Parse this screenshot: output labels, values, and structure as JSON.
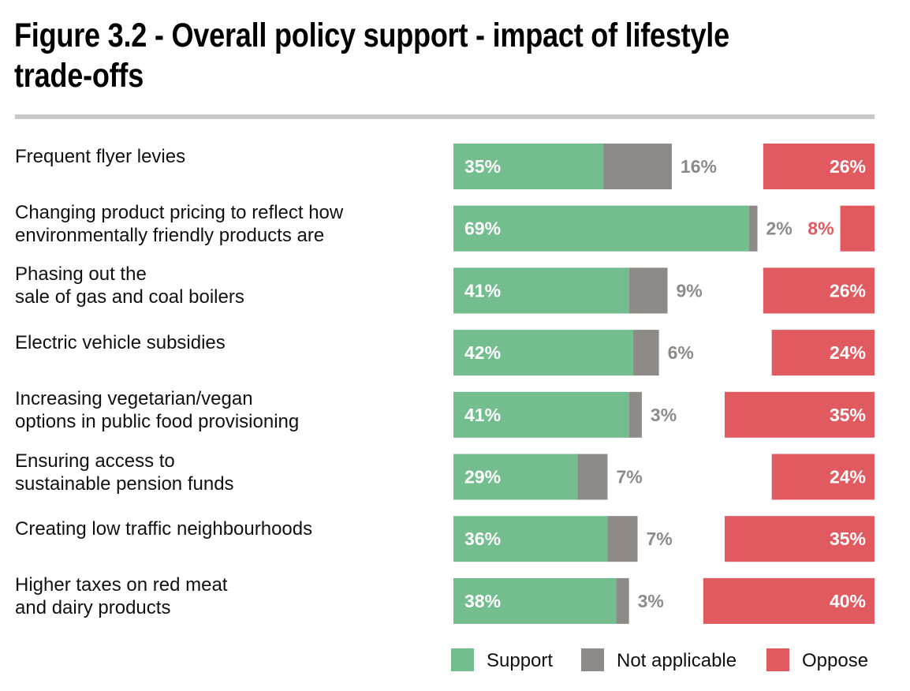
{
  "chart_data": {
    "type": "bar",
    "orientation": "horizontal",
    "stacked": true,
    "title": "Figure 3.2 - Overall policy support - impact of lifestyle trade-offs",
    "categories": [
      "Frequent flyer levies",
      "Changing product pricing to reflect how environmentally friendly products are",
      "Phasing out the sale of gas and coal boilers",
      "Electric vehicle subsidies",
      "Increasing vegetarian/vegan options in public food provisioning",
      "Ensuring access to sustainable pension funds",
      "Creating low traffic neighbourhoods",
      "Higher taxes on red meat and dairy products"
    ],
    "category_lines": [
      [
        "Frequent flyer levies"
      ],
      [
        "Changing product pricing to reflect how",
        "environmentally friendly products are"
      ],
      [
        "Phasing out the",
        "sale of gas and coal boilers"
      ],
      [
        "Electric vehicle subsidies"
      ],
      [
        "Increasing vegetarian/vegan",
        "options in public food provisioning"
      ],
      [
        "Ensuring access to",
        "sustainable pension funds"
      ],
      [
        "Creating low traffic neighbourhoods"
      ],
      [
        "Higher taxes on red meat",
        "and dairy products"
      ]
    ],
    "series": [
      {
        "name": "Support",
        "color": "#73bd8e",
        "label_color": "#ffffff",
        "values": [
          35,
          69,
          41,
          42,
          41,
          29,
          36,
          38
        ]
      },
      {
        "name": "Not applicable",
        "color": "#8d8a88",
        "label_color": "#8d8a88",
        "values": [
          16,
          2,
          9,
          6,
          3,
          7,
          7,
          3
        ]
      },
      {
        "name": "Oppose",
        "color": "#e05a60",
        "label_color": "#ffffff",
        "values": [
          26,
          8,
          26,
          24,
          35,
          24,
          35,
          40
        ]
      }
    ],
    "value_suffix": "%",
    "legend_position": "bottom-right",
    "xlim": [
      0,
      100
    ],
    "grid": false
  }
}
